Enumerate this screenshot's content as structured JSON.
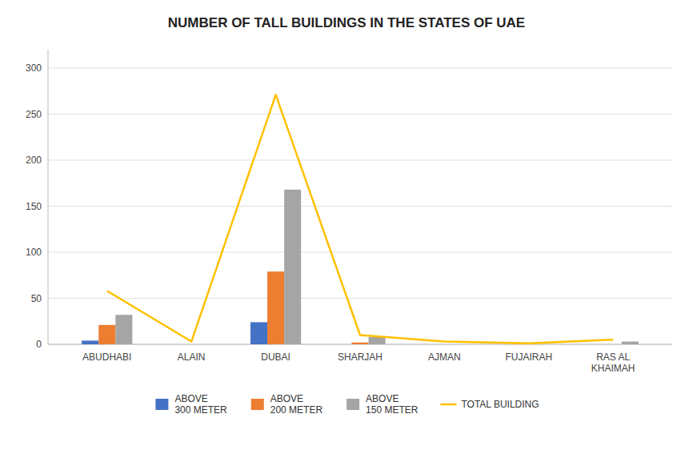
{
  "chart_data": {
    "type": "bar",
    "title": "NUMBER OF TALL BUILDINGS IN THE STATES OF UAE",
    "categories": [
      "ABUDHABI",
      "ALAIN",
      "DUBAI",
      "SHARJAH",
      "AJMAN",
      "FUJAIRAH",
      "RAS AL\nKHAIMAH"
    ],
    "series": [
      {
        "name": "ABOVE\n300 METER",
        "color": "#4472c4",
        "values": [
          4,
          0,
          24,
          0,
          0,
          0,
          0
        ]
      },
      {
        "name": "ABOVE\n200 METER",
        "color": "#ed7d31",
        "values": [
          21,
          0,
          79,
          2,
          0,
          0,
          0
        ]
      },
      {
        "name": "ABOVE\n150 METER",
        "color": "#a5a5a5",
        "values": [
          32,
          0,
          168,
          8,
          0,
          0,
          3
        ]
      },
      {
        "name": "TOTAL BUILDING",
        "type": "line",
        "color": "#ffc000",
        "values": [
          58,
          3,
          271,
          10,
          3,
          1,
          5
        ]
      }
    ],
    "ylim": [
      0,
      320
    ],
    "yticks": [
      0,
      50,
      100,
      150,
      200,
      250,
      300
    ],
    "grid": true,
    "legend": "bottom"
  }
}
